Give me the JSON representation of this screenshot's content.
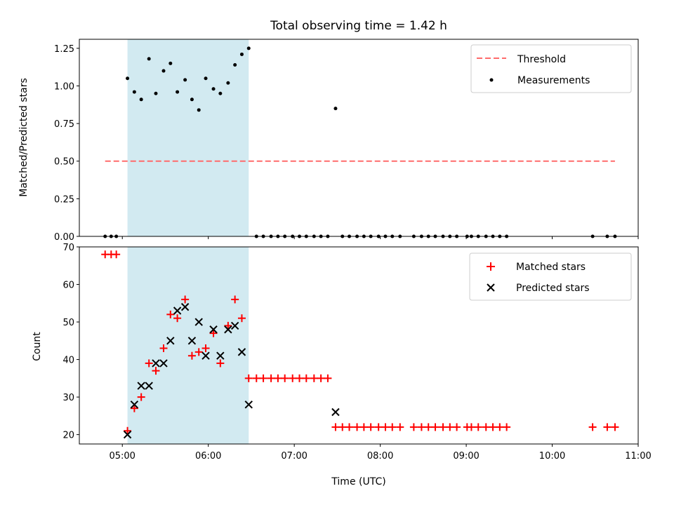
{
  "title": "Total observing time = 1.42 h",
  "colors": {
    "shade": "#add8e6",
    "threshold": "#ff6b6b",
    "matched": "#ff0000",
    "predicted": "#000000",
    "measurement": "#000000"
  },
  "chart_data": [
    {
      "type": "scatter",
      "ylabel": "Matched/Predicted stars",
      "xlim": [
        4.5,
        11.0
      ],
      "ylim": [
        0,
        1.31
      ],
      "yticks": [
        "0.00",
        "0.25",
        "0.50",
        "0.75",
        "1.00",
        "1.25"
      ],
      "ytick_values": [
        0,
        0.25,
        0.5,
        0.75,
        1.0,
        1.25
      ],
      "shaded_span": [
        5.06,
        6.47
      ],
      "threshold": {
        "name": "Threshold",
        "value": 0.5,
        "x_range": [
          4.8,
          10.73
        ]
      },
      "series": [
        {
          "name": "Measurements",
          "x": [
            4.8,
            4.87,
            4.93,
            5.06,
            5.14,
            5.22,
            5.31,
            5.39,
            5.48,
            5.56,
            5.64,
            5.73,
            5.81,
            5.89,
            5.97,
            6.06,
            6.14,
            6.23,
            6.31,
            6.39,
            6.47,
            6.56,
            6.64,
            6.73,
            6.81,
            6.89,
            6.98,
            7.06,
            7.14,
            7.23,
            7.31,
            7.39,
            7.48,
            7.56,
            7.64,
            7.73,
            7.81,
            7.89,
            7.98,
            8.06,
            8.14,
            8.23,
            8.39,
            8.48,
            8.56,
            8.64,
            8.73,
            8.81,
            8.89,
            9.01,
            9.06,
            9.14,
            9.23,
            9.31,
            9.39,
            9.47,
            10.47,
            10.64,
            10.73
          ],
          "y": [
            0,
            0,
            0,
            1.05,
            0.96,
            0.91,
            1.18,
            0.95,
            1.1,
            1.15,
            0.96,
            1.04,
            0.91,
            0.84,
            1.05,
            0.98,
            0.95,
            1.02,
            1.14,
            1.21,
            1.25,
            0,
            0,
            0,
            0,
            0,
            0,
            0,
            0,
            0,
            0,
            0,
            0.85,
            0,
            0,
            0,
            0,
            0,
            0,
            0,
            0,
            0,
            0,
            0,
            0,
            0,
            0,
            0,
            0,
            0,
            0,
            0,
            0,
            0,
            0,
            0,
            0,
            0,
            0
          ]
        }
      ]
    },
    {
      "type": "scatter",
      "ylabel": "Count",
      "xlabel": "Time (UTC)",
      "xlim": [
        4.5,
        11.0
      ],
      "ylim": [
        17.5,
        70.0
      ],
      "xticks": [
        "05:00",
        "06:00",
        "07:00",
        "08:00",
        "09:00",
        "10:00",
        "11:00"
      ],
      "xtick_values": [
        5,
        6,
        7,
        8,
        9,
        10,
        11
      ],
      "yticks": [
        "20",
        "30",
        "40",
        "50",
        "60",
        "70"
      ],
      "ytick_values": [
        20,
        30,
        40,
        50,
        60,
        70
      ],
      "shaded_span": [
        5.06,
        6.47
      ],
      "series": [
        {
          "name": "Matched stars",
          "x": [
            4.8,
            4.87,
            4.93,
            5.06,
            5.14,
            5.22,
            5.31,
            5.39,
            5.48,
            5.56,
            5.64,
            5.73,
            5.81,
            5.89,
            5.97,
            6.06,
            6.14,
            6.23,
            6.31,
            6.39,
            6.47,
            6.56,
            6.64,
            6.73,
            6.81,
            6.89,
            6.98,
            7.06,
            7.14,
            7.23,
            7.31,
            7.39,
            7.48,
            7.56,
            7.64,
            7.73,
            7.81,
            7.89,
            7.98,
            8.06,
            8.14,
            8.23,
            8.39,
            8.48,
            8.56,
            8.64,
            8.73,
            8.81,
            8.89,
            9.01,
            9.06,
            9.14,
            9.23,
            9.31,
            9.39,
            9.47,
            10.47,
            10.64,
            10.73
          ],
          "y": [
            68,
            68,
            68,
            21,
            27,
            30,
            39,
            37,
            43,
            52,
            51,
            56,
            41,
            42,
            43,
            47,
            39,
            49,
            56,
            51,
            35,
            35,
            35,
            35,
            35,
            35,
            35,
            35,
            35,
            35,
            35,
            35,
            22,
            22,
            22,
            22,
            22,
            22,
            22,
            22,
            22,
            22,
            22,
            22,
            22,
            22,
            22,
            22,
            22,
            22,
            22,
            22,
            22,
            22,
            22,
            22,
            22,
            22,
            22
          ]
        },
        {
          "name": "Predicted stars",
          "x": [
            5.06,
            5.14,
            5.22,
            5.31,
            5.39,
            5.48,
            5.56,
            5.64,
            5.73,
            5.81,
            5.89,
            5.97,
            6.06,
            6.14,
            6.23,
            6.31,
            6.39,
            6.47,
            7.48
          ],
          "y": [
            20,
            28,
            33,
            33,
            39,
            39,
            45,
            53,
            54,
            45,
            50,
            41,
            48,
            41,
            48,
            49,
            42,
            28,
            26
          ]
        }
      ]
    }
  ]
}
